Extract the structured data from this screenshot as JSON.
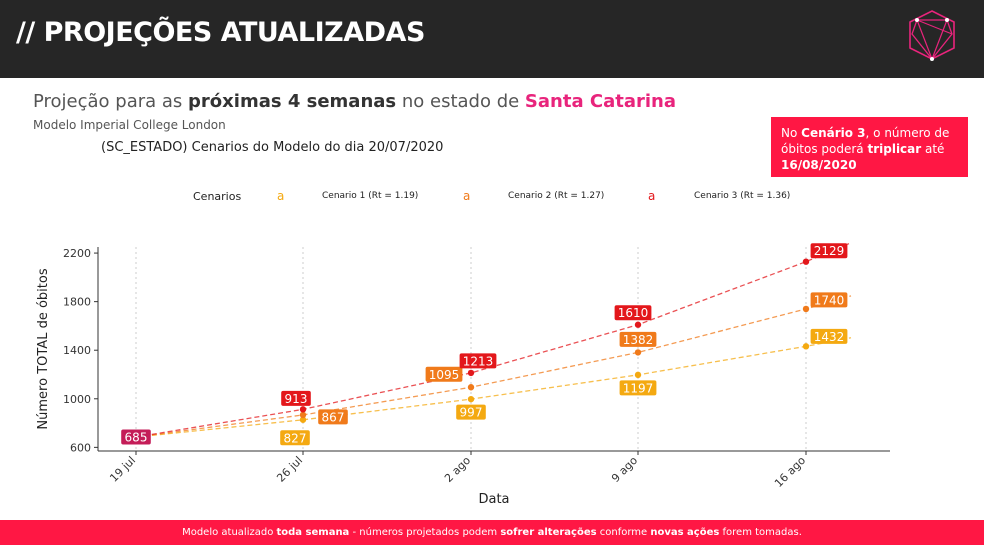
{
  "header": {
    "title": "// PROJEÇÕES ATUALIZADAS"
  },
  "subtitle": {
    "prefix": "Projeção para as ",
    "bold": "próximas 4 semanas",
    "middle": " no estado de ",
    "state": "Santa Catarina"
  },
  "model_label": "Modelo Imperial College London",
  "callout": {
    "p1": "No ",
    "b1": "Cenário 3",
    "p2": ", o número de óbitos poderá ",
    "b2": "triplicar",
    "p3": " até ",
    "b3": "16/08/2020"
  },
  "footer": {
    "p1": "Modelo atualizado ",
    "b1": "toda semana",
    "p2": " - números projetados podem ",
    "b2": "sofrer alterações",
    "p3": " conforme ",
    "b3": "novas ações",
    "p4": " forem tomadas."
  },
  "colors": {
    "cenario1": "#f4a911",
    "cenario2": "#f07a1a",
    "cenario3": "#e3171b",
    "start": "#c41d58",
    "grid": "#cccccc"
  },
  "chart_data": {
    "type": "line",
    "title": "(SC_ESTADO) Cenarios do Modelo do dia 20/07/2020",
    "xlabel": "Data",
    "ylabel": "Número TOTAL de óbitos",
    "legend_title": "Cenarios",
    "legend_key_glyph": "a",
    "categories": [
      "19 jul",
      "26 jul",
      "2 ago",
      "9 ago",
      "16 ago"
    ],
    "ylim": [
      570,
      2250
    ],
    "yticks": [
      600,
      1000,
      1400,
      1800,
      2200
    ],
    "series": [
      {
        "name": "Cenario 1 (Rt = 1.19)",
        "values": [
          685,
          827,
          997,
          1197,
          1432
        ]
      },
      {
        "name": "Cenario 2 (Rt = 1.27)",
        "values": [
          685,
          867,
          1095,
          1382,
          1740
        ]
      },
      {
        "name": "Cenario 3 (Rt = 1.36)",
        "values": [
          685,
          913,
          1213,
          1610,
          2129
        ]
      }
    ],
    "start_label": "685"
  }
}
